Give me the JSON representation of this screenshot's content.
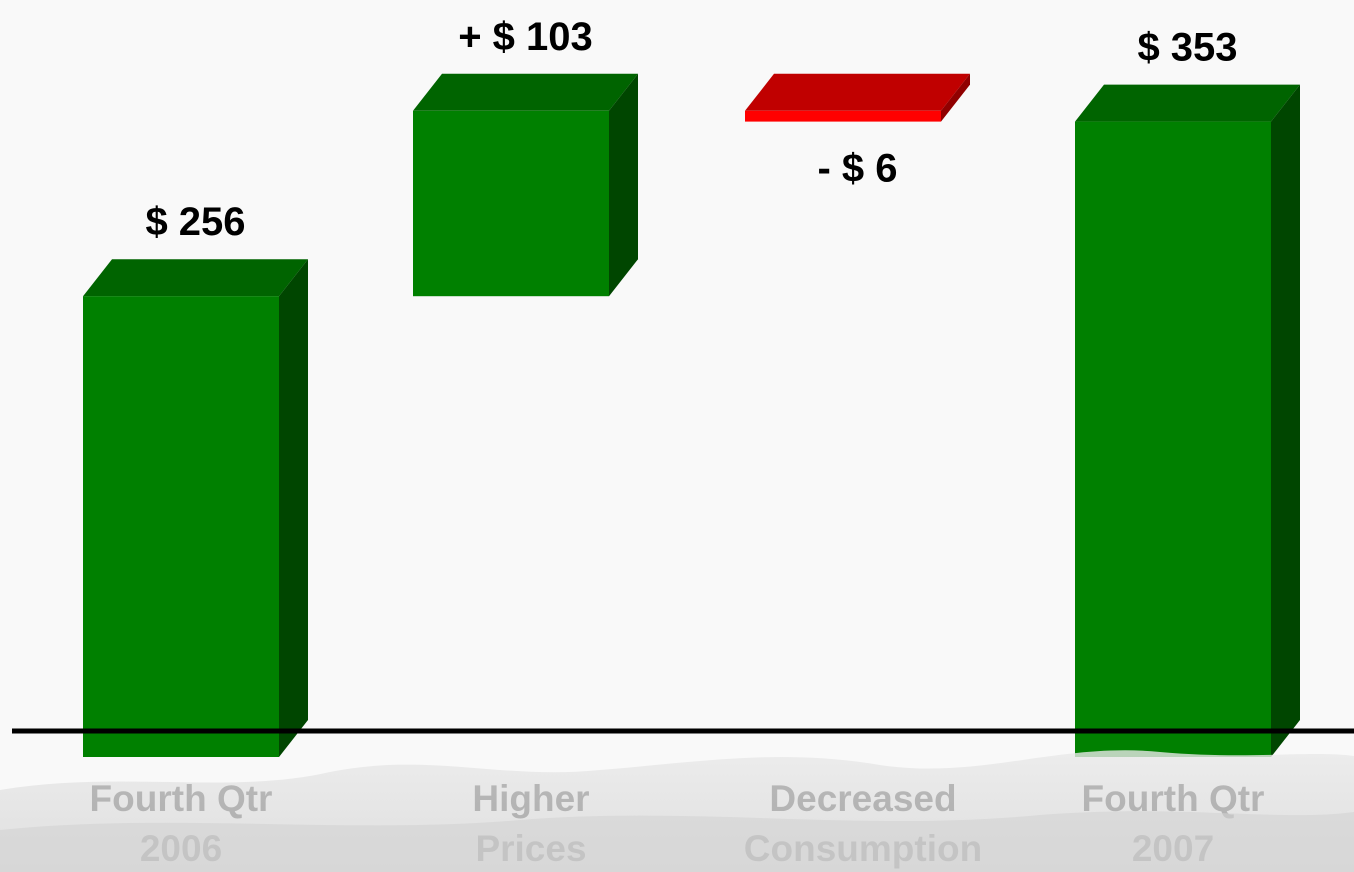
{
  "chart_data": {
    "type": "bar",
    "subtype": "waterfall-3d",
    "categories": [
      "Fourth Qtr 2006",
      "Higher Prices",
      "Decreased Consumption",
      "Fourth Qtr 2007"
    ],
    "category_lines": [
      [
        "Fourth Qtr",
        "2006"
      ],
      [
        "Higher",
        "Prices"
      ],
      [
        "Decreased",
        "Consumption"
      ],
      [
        "Fourth Qtr",
        "2007"
      ]
    ],
    "bars": [
      {
        "kind": "total",
        "start": 0,
        "end": 256,
        "label": "$ 256"
      },
      {
        "kind": "increase",
        "start": 256,
        "end": 359,
        "label": "+ $ 103"
      },
      {
        "kind": "decrease",
        "start": 359,
        "end": 353,
        "label": "- $ 6"
      },
      {
        "kind": "total",
        "start": 0,
        "end": 353,
        "label": "$ 353"
      }
    ],
    "values": [
      256,
      103,
      -6,
      353
    ],
    "title": "",
    "xlabel": "",
    "ylabel": "",
    "ylim": [
      0,
      359
    ],
    "grid": false,
    "legend": "none",
    "colors": {
      "positive_front": "#008000",
      "positive_top": "#006400",
      "positive_side": "#004600",
      "negative_front": "#ff0000",
      "negative_top": "#c00000",
      "negative_side": "#900000",
      "baseline": "#000000",
      "text": "#000000"
    }
  }
}
